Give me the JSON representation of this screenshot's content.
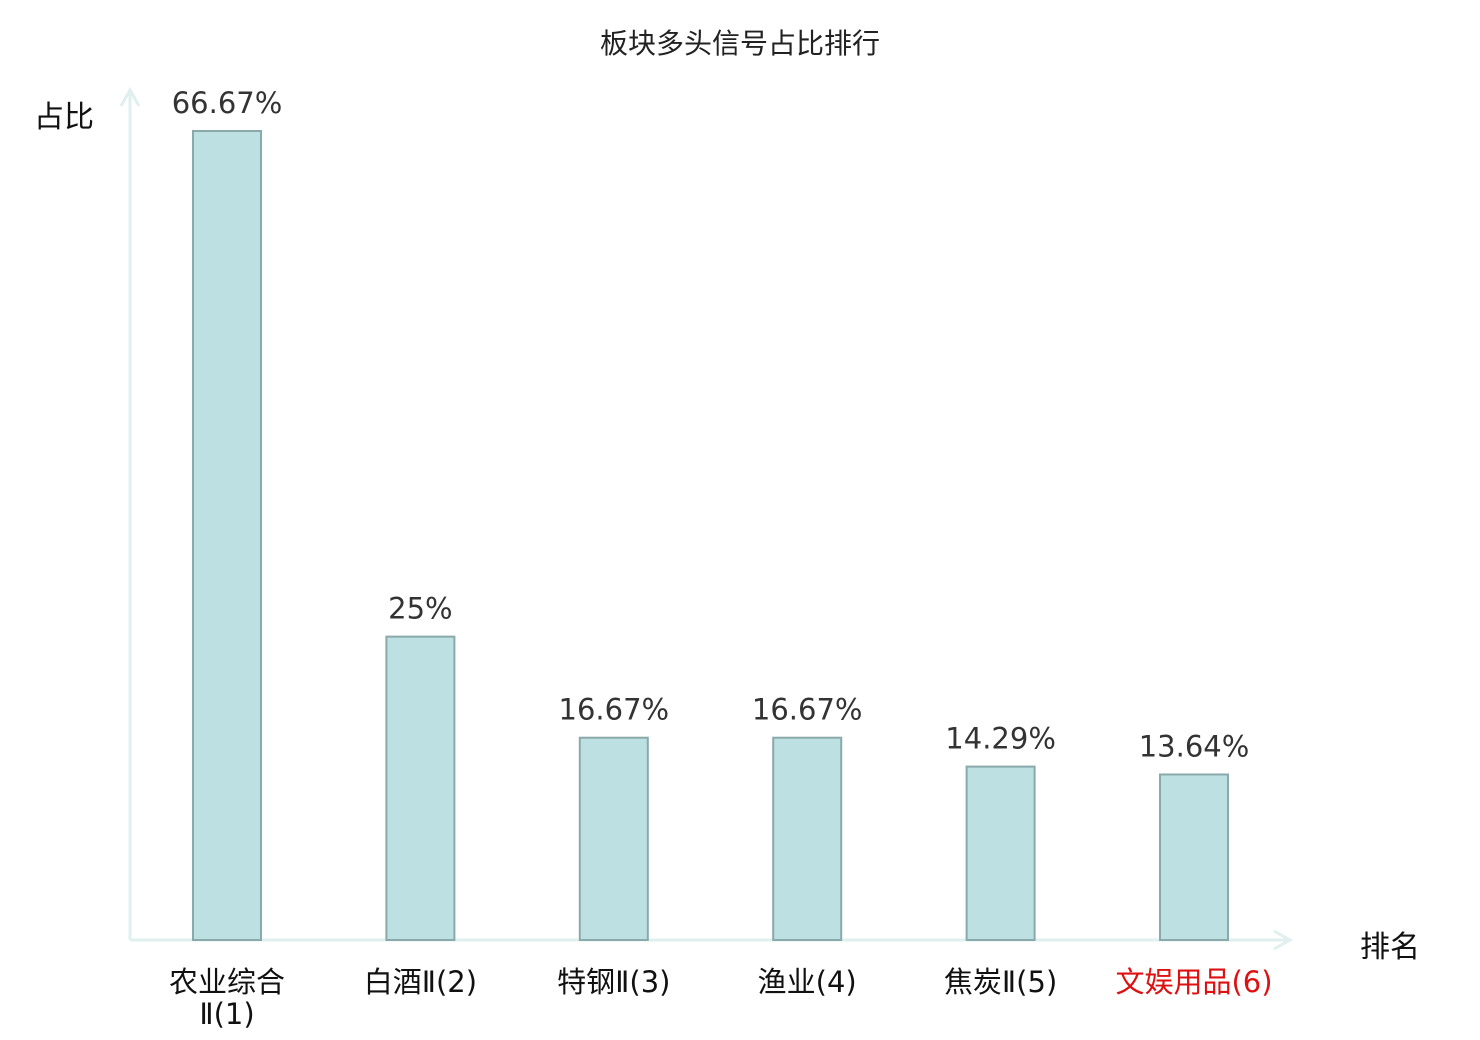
{
  "chart_data": {
    "type": "bar",
    "title": "板块多头信号占比排行",
    "ylabel": "占比",
    "xlabel": "排名",
    "categories": [
      "农业综合Ⅱ(1)",
      "白酒Ⅱ(2)",
      "特钢Ⅱ(3)",
      "渔业(4)",
      "焦炭Ⅱ(5)",
      "文娱用品(6)"
    ],
    "values": [
      66.67,
      25,
      16.67,
      16.67,
      14.29,
      13.64
    ],
    "data_labels": [
      "66.67%",
      "25%",
      "16.67%",
      "16.67%",
      "14.29%",
      "13.64%"
    ],
    "highlight_index": 5,
    "highlight_color": "#dd1111",
    "bar_color": "#bde0e3",
    "bar_edge_color": "#8aa9ab",
    "axis_color": "#dff0ee",
    "ylim": [
      0,
      70
    ],
    "grid": false,
    "legend": "none"
  }
}
